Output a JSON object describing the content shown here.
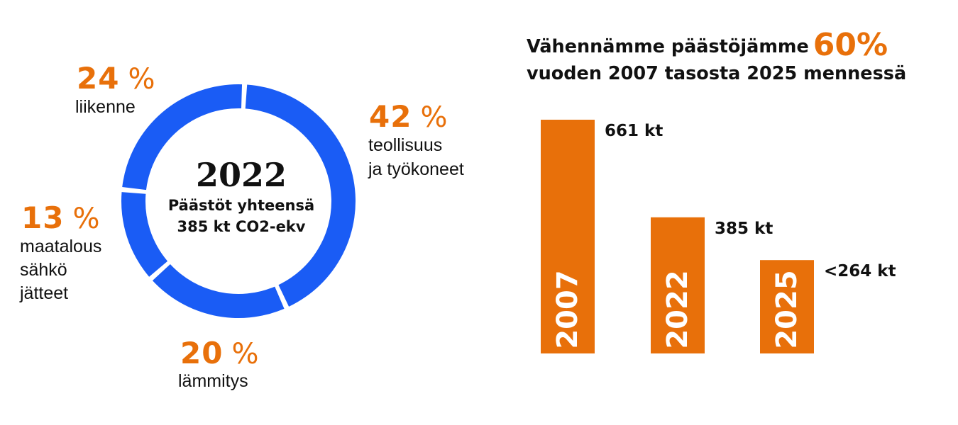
{
  "chart_data": [
    {
      "type": "pie",
      "center_title": "2022",
      "center_line1": "Päästöt yhteensä",
      "center_line2": "385 kt CO2-ekv",
      "slices": [
        {
          "value": 42,
          "pct_text": "42",
          "unit": "%",
          "labels": [
            "teollisuus",
            "ja työkoneet"
          ]
        },
        {
          "value": 20,
          "pct_text": "20",
          "unit": "%",
          "labels": [
            "lämmitys"
          ]
        },
        {
          "value": 13,
          "pct_text": "13",
          "unit": "%",
          "labels": [
            "maatalous",
            "sähkö",
            "jätteet"
          ]
        },
        {
          "value": 24,
          "pct_text": "24",
          "unit": "%",
          "labels": [
            "liikenne"
          ]
        }
      ],
      "colors": {
        "ring": "#1a5cf5",
        "percent": "#e8700a"
      }
    },
    {
      "type": "bar",
      "title_part1": "Vähennämme päästöjämme",
      "title_accent": "60%",
      "title_part2": "vuoden 2007 tasosta 2025 mennessä",
      "categories": [
        "2007",
        "2022",
        "2025"
      ],
      "values": [
        661,
        385,
        264
      ],
      "value_labels": [
        "661 kt",
        "385 kt",
        "<264 kt"
      ],
      "ylim": [
        0,
        661
      ],
      "colors": {
        "bar": "#e8700a",
        "bar_text": "#ffffff"
      }
    }
  ]
}
